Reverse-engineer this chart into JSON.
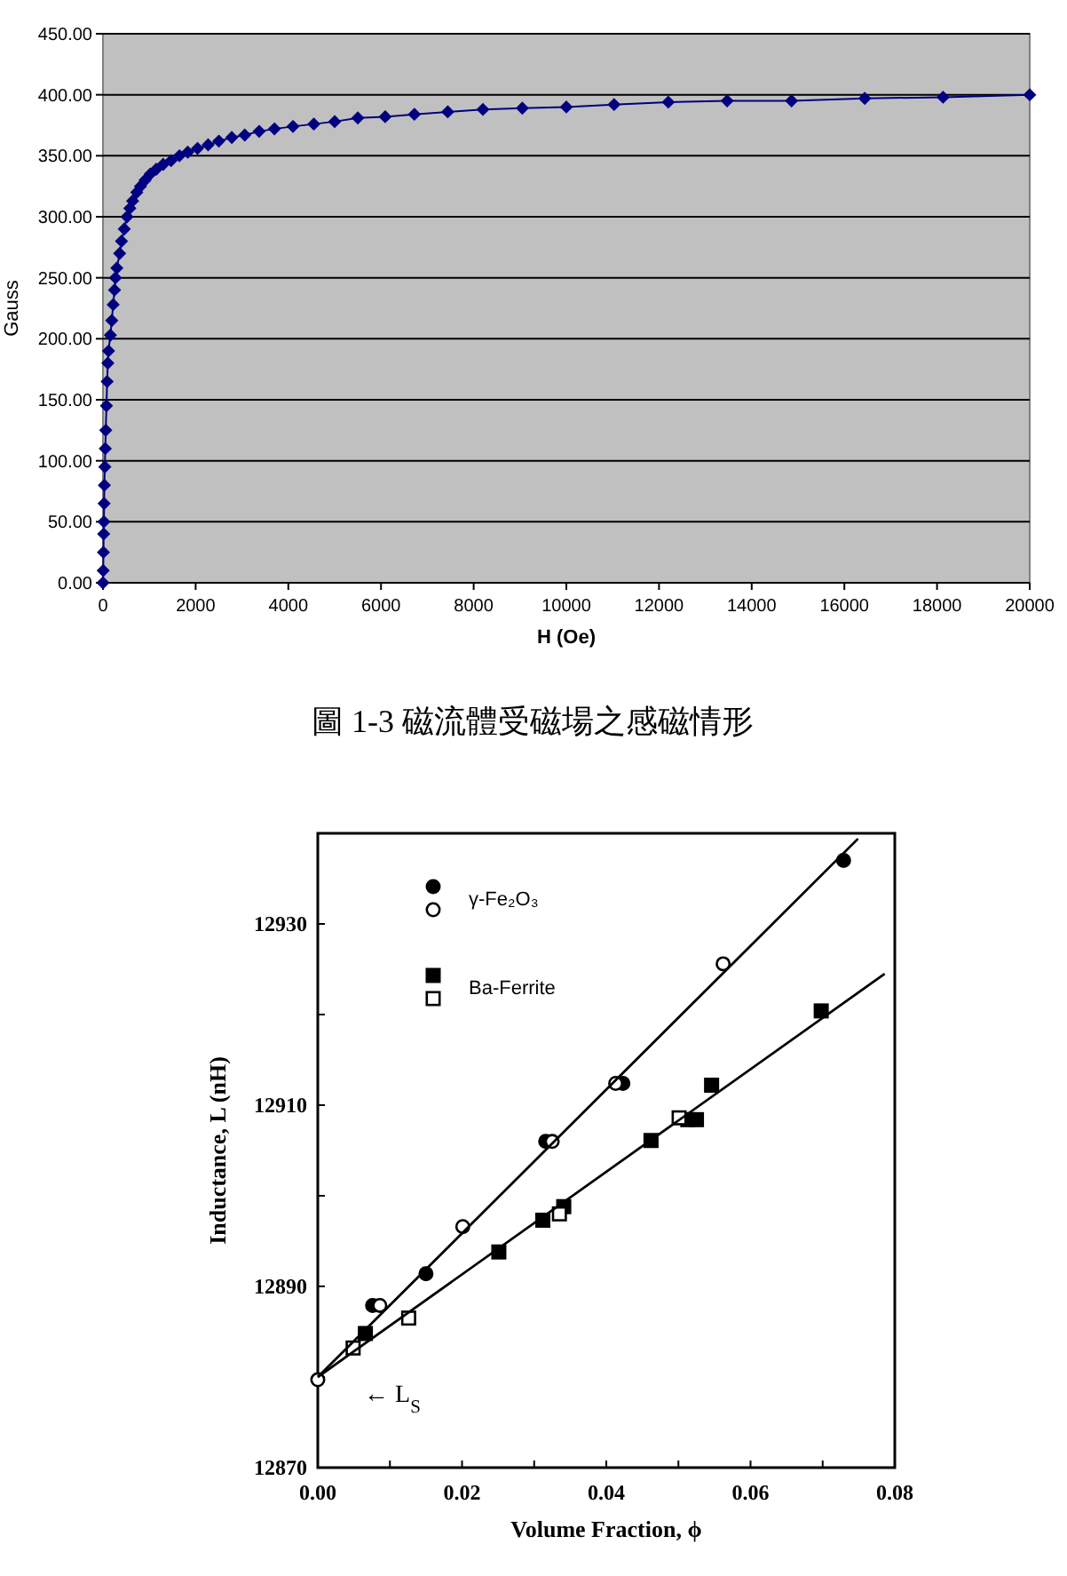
{
  "chart_data": [
    {
      "type": "line",
      "xlabel": "H (Oe)",
      "ylabel": "Gauss",
      "marker": "diamond",
      "grid": "y",
      "xlim": [
        0,
        20000
      ],
      "ylim": [
        0,
        450
      ],
      "xticks": [
        0,
        2000,
        4000,
        6000,
        8000,
        10000,
        12000,
        14000,
        16000,
        18000,
        20000
      ],
      "yticks": [
        {
          "value": 0,
          "label": "0.00"
        },
        {
          "value": 50,
          "label": "50.00"
        },
        {
          "value": 100,
          "label": "100.00"
        },
        {
          "value": 150,
          "label": "150.00"
        },
        {
          "value": 200,
          "label": "200.00"
        },
        {
          "value": 250,
          "label": "250.00"
        },
        {
          "value": 300,
          "label": "300.00"
        },
        {
          "value": 350,
          "label": "350.00"
        },
        {
          "value": 400,
          "label": "400.00"
        },
        {
          "value": 450,
          "label": "450.00"
        }
      ],
      "annotations": [
        "圖 1-3 磁流體受磁場之感磁情形"
      ],
      "series": [
        {
          "color": "#000080",
          "x": [
            0,
            5,
            10,
            15,
            20,
            25,
            30,
            40,
            50,
            60,
            75,
            90,
            105,
            120,
            160,
            190,
            220,
            250,
            270,
            300,
            360,
            400,
            460,
            520,
            580,
            640,
            730,
            810,
            910,
            1020,
            1150,
            1300,
            1470,
            1650,
            1830,
            2040,
            2270,
            2500,
            2780,
            3060,
            3370,
            3700,
            4100,
            4550,
            5000,
            5500,
            6090,
            6720,
            7440,
            8200,
            9050,
            10000,
            11030,
            12200,
            13470,
            14860,
            16440,
            18130,
            20000
          ],
          "values": [
            0,
            10,
            25,
            40,
            50,
            65,
            80,
            95,
            110,
            125,
            145,
            165,
            180,
            190,
            203,
            215,
            228,
            240,
            250,
            258,
            270,
            280,
            290,
            300,
            307,
            313,
            320,
            325,
            330,
            335,
            339,
            343,
            346,
            350,
            353,
            356,
            359,
            362,
            365,
            367,
            370,
            372,
            374,
            376,
            378,
            381,
            382,
            384,
            386,
            388,
            389,
            390,
            392,
            394,
            395,
            395,
            397,
            398,
            400
          ]
        }
      ]
    },
    {
      "type": "scatter",
      "xlabel": "Volume Fraction, ϕ",
      "ylabel": "Inductance, L (nH)",
      "legend": "top left",
      "xlim": [
        0,
        0.08
      ],
      "ylim": [
        12870,
        12940
      ],
      "xticks": [
        {
          "value": 0,
          "label": "0.00"
        },
        {
          "value": 0.01,
          "label": null
        },
        {
          "value": 0.02,
          "label": "0.02"
        },
        {
          "value": 0.03,
          "label": null
        },
        {
          "value": 0.04,
          "label": "0.04"
        },
        {
          "value": 0.05,
          "label": null
        },
        {
          "value": 0.06,
          "label": "0.06"
        },
        {
          "value": 0.07,
          "label": null
        },
        {
          "value": 0.08,
          "label": "0.08"
        }
      ],
      "yticks": [
        12870,
        {
          "value": 12880,
          "label": null
        },
        12890,
        {
          "value": 12900,
          "label": null
        },
        12910,
        {
          "value": 12920,
          "label": null
        },
        12930
      ],
      "annotations": [
        {
          "text": "← L$_{S}$",
          "x": 0,
          "y": 12880
        }
      ],
      "series": [
        {
          "name": "γ-Fe₂O₃",
          "marker": "circle",
          "color": "#000000",
          "x": [
            0.0729,
            0.0423,
            0.0316,
            0.015,
            0.0076
          ],
          "values": [
            12937,
            12912.4,
            12906,
            12891.4,
            12887.9
          ]
        },
        {
          "marker": "circle",
          "color": "#ffffff",
          "x": [
            0.0562,
            0.0413,
            0.0325,
            0.0201,
            0.0086,
            0.0
          ],
          "values": [
            12925.6,
            12912.4,
            12906,
            12896.6,
            12887.9,
            12879.7
          ]
        },
        {
          "name": "Ba-Ferrite",
          "marker": "square",
          "color": "#000000",
          "x": [
            0.0698,
            0.0546,
            0.0525,
            0.0513,
            0.0462,
            0.0341,
            0.0312,
            0.0251,
            0.0066
          ],
          "values": [
            12920.4,
            12912.2,
            12908.4,
            12908.4,
            12906.1,
            12898.8,
            12897.3,
            12893.8,
            12884.8
          ]
        },
        {
          "marker": "square",
          "color": "#ffffff",
          "x": [
            0.0501,
            0.0335,
            0.0126,
            0.0049
          ],
          "values": [
            12908.6,
            12898,
            12886.5,
            12883.2
          ]
        },
        {
          "type": "line",
          "marker": "none",
          "color": "#000000",
          "x": [
            0,
            0.0749
          ],
          "values": [
            12880,
            12939.4
          ]
        },
        {
          "type": "line",
          "marker": "none",
          "color": "#000000",
          "x": [
            0,
            0.0786
          ],
          "values": [
            12880,
            12924.5
          ]
        }
      ]
    }
  ]
}
